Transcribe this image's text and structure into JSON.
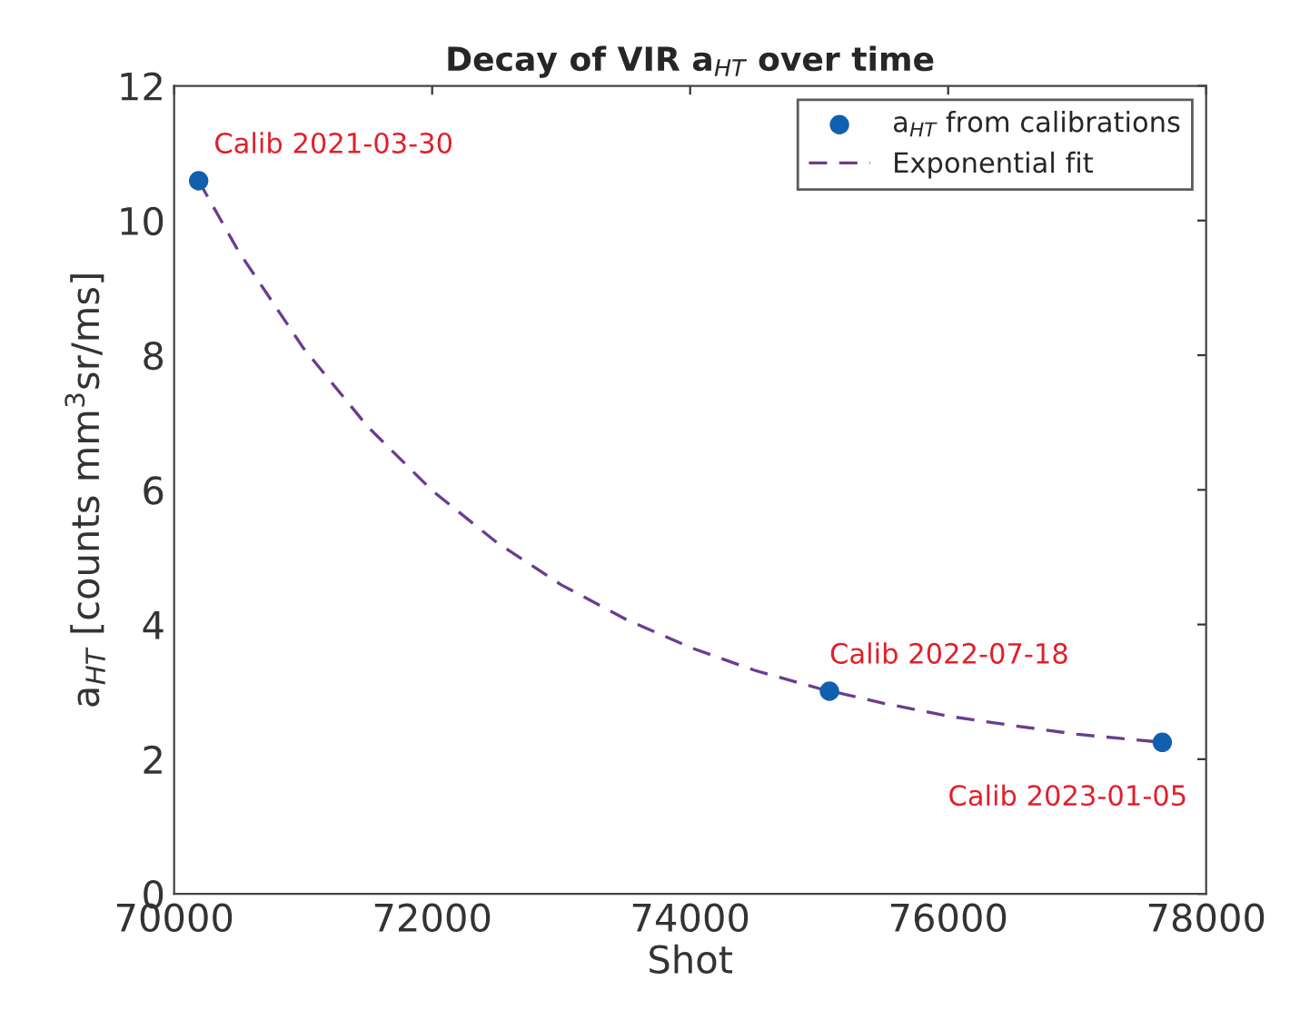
{
  "chart_data": {
    "type": "scatter",
    "title": "Decay of VIR a$_{HT}$ over time",
    "xlabel": "Shot",
    "ylabel": "a$_{HT}$ [counts mm$^{3}$sr/ms]",
    "xlim": [
      70000,
      78000
    ],
    "xticks": [
      70000,
      72000,
      74000,
      76000,
      78000
    ],
    "ylim": [
      0,
      12
    ],
    "yticks": [
      0,
      2,
      4,
      6,
      8,
      10,
      12
    ],
    "grid": false,
    "legend": "top right",
    "marker": "circle",
    "series": [
      {
        "name": "a$_{HT}$ from calibrations",
        "color": "#1060b0",
        "x": [
          70190,
          75080,
          77660
        ],
        "values": [
          10.59,
          3.01,
          2.25
        ]
      },
      {
        "name": "Exponential fit",
        "type": "line",
        "line_style": "dashed",
        "marker": "none",
        "color": "#6a3d8f",
        "x": [
          70190,
          70500,
          71000,
          71500,
          72000,
          72500,
          73000,
          73500,
          74000,
          74500,
          75000,
          75500,
          76000,
          76500,
          77000,
          77660
        ],
        "values": [
          10.59,
          9.54,
          8.11,
          6.94,
          5.99,
          5.22,
          4.59,
          4.08,
          3.66,
          3.32,
          3.05,
          2.83,
          2.64,
          2.5,
          2.37,
          2.25
        ]
      }
    ],
    "annotations": [
      {
        "text": "Calib 2021-03-30",
        "x": 70190,
        "y": 10.59
      },
      {
        "text": "Calib 2022-07-18",
        "x": 75080,
        "y": 3.01
      },
      {
        "text": "Calib 2023-01-05",
        "x": 77660,
        "y": 2.25
      }
    ]
  }
}
